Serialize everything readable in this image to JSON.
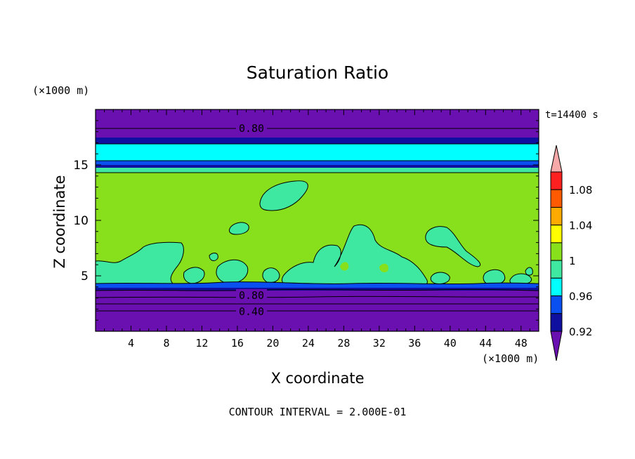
{
  "chart_data": {
    "type": "contour",
    "title": "Saturation Ratio",
    "xlabel": "X coordinate",
    "ylabel": "Z coordinate",
    "x_unit": "(×1000 m)",
    "y_unit": "(×1000 m)",
    "time_label": "t=14400 s",
    "footer": "CONTOUR INTERVAL = 2.000E-01",
    "xlim": [
      0,
      50
    ],
    "ylim": [
      0,
      20
    ],
    "x_ticks": [
      "4",
      "8",
      "12",
      "16",
      "20",
      "24",
      "28",
      "32",
      "36",
      "40",
      "44",
      "48"
    ],
    "y_ticks": [
      "5",
      "10",
      "15"
    ],
    "contour_labels": [
      "0.80",
      "0.80",
      "0.40"
    ],
    "colorbar": {
      "labels": [
        "1.08",
        "1.04",
        "1",
        "0.96",
        "0.92"
      ],
      "levels": [
        0.9,
        0.92,
        0.94,
        0.96,
        0.98,
        1.0,
        1.02,
        1.04,
        1.06,
        1.08,
        1.1
      ],
      "colors": [
        "#6a0fb0",
        "#1010a0",
        "#0a50f0",
        "#00ffff",
        "#3fe8a0",
        "#88e01c",
        "#ffff00",
        "#ffaa00",
        "#ff5a00",
        "#ff2020",
        "#f7a8a8"
      ]
    },
    "colors": {
      "purple": "#6a0fb0",
      "navy": "#1010a0",
      "blue": "#0a50f0",
      "cyan": "#00ffff",
      "teal": "#3fe8a0",
      "green": "#88e01c"
    }
  }
}
